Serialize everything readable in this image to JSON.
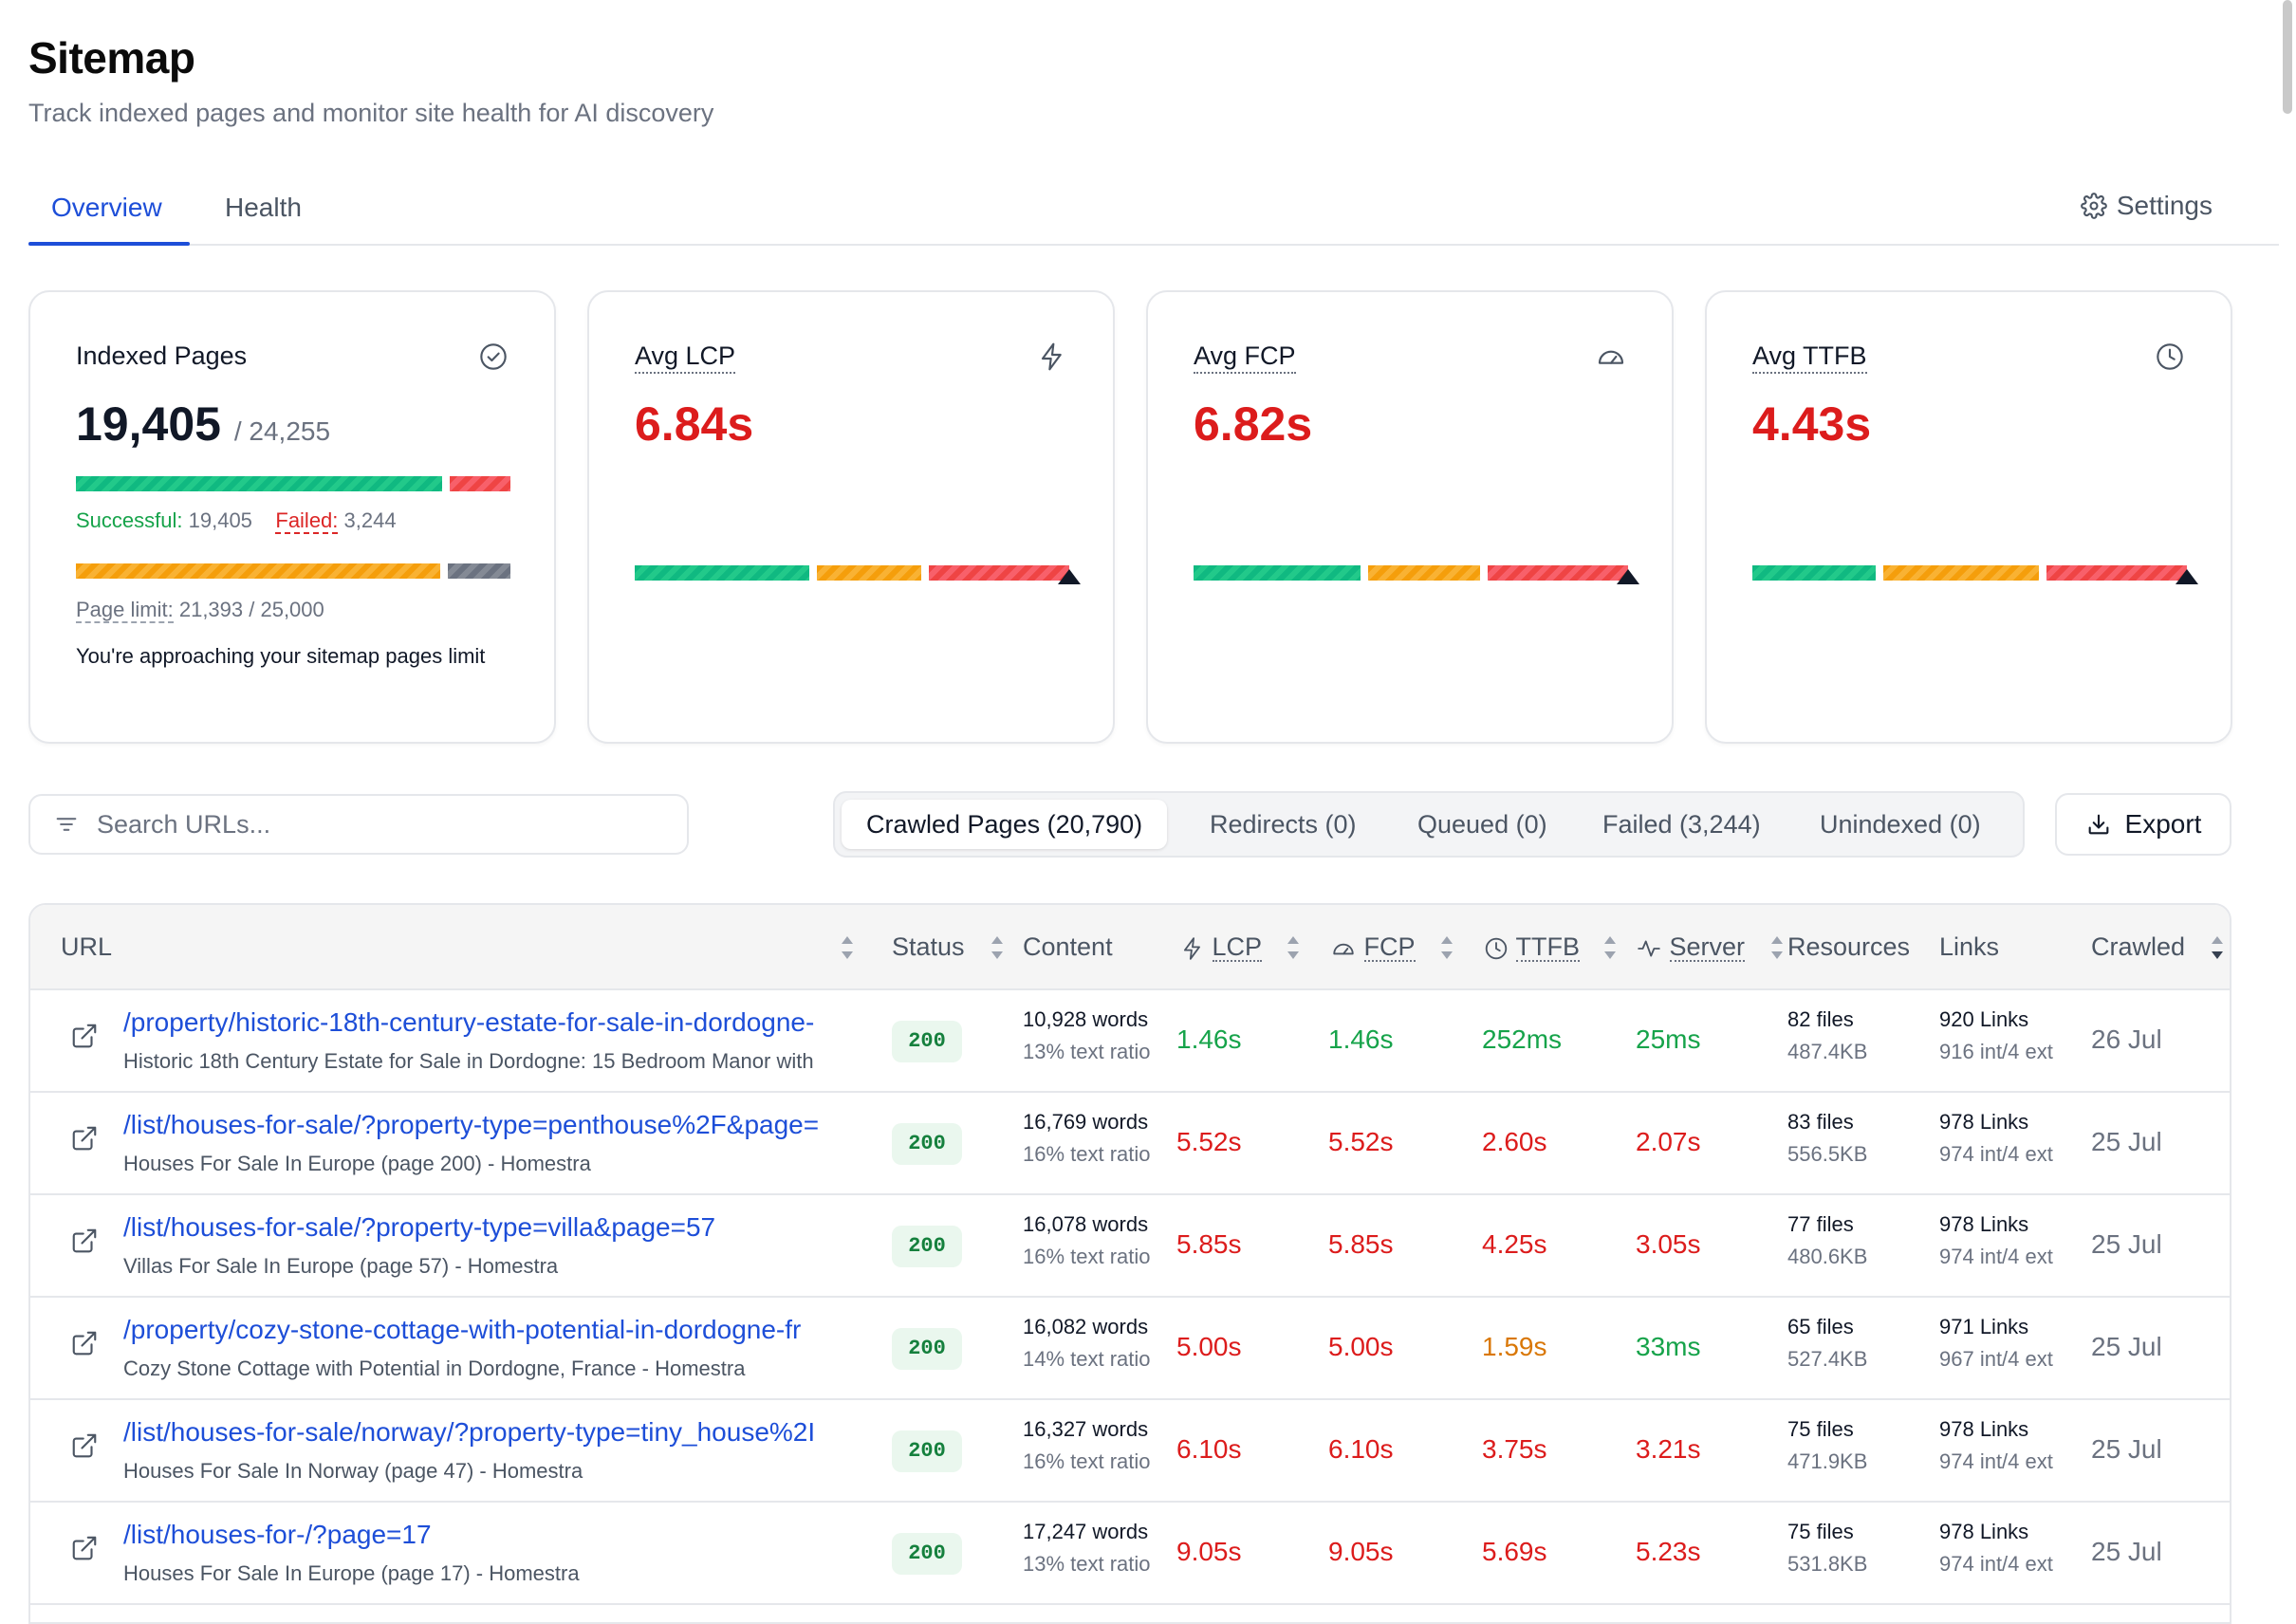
{
  "page": {
    "title": "Sitemap",
    "subtitle": "Track indexed pages and monitor site health for AI discovery"
  },
  "tabs": [
    {
      "label": "Overview",
      "active": true
    },
    {
      "label": "Health",
      "active": false
    }
  ],
  "settings_label": "Settings",
  "cards": {
    "indexed": {
      "title": "Indexed Pages",
      "icon": "check-circle-icon",
      "value": "19,405",
      "total": "/ 24,255",
      "successful_label": "Successful:",
      "successful_value": "19,405",
      "failed_label": "Failed:",
      "failed_value": "3,244",
      "successful_fraction": 0.857,
      "page_limit_label": "Page limit:",
      "page_limit_value": "21,393 / 25,000",
      "page_limit_fraction": 0.856,
      "warning": "You're approaching your sitemap pages limit"
    },
    "lcp": {
      "title": "Avg LCP",
      "icon": "lightning-icon",
      "value": "6.84s"
    },
    "fcp": {
      "title": "Avg FCP",
      "icon": "speedometer-icon",
      "value": "6.82s"
    },
    "ttfb": {
      "title": "Avg TTFB",
      "icon": "clock-icon",
      "value": "4.43s"
    }
  },
  "colors": {
    "good": "#16a34a",
    "needs_improvement": "#d97706",
    "poor": "#dc1c1c",
    "accent": "#1d4ed8"
  },
  "search": {
    "placeholder": "Search URLs..."
  },
  "filters": [
    {
      "label": "Crawled Pages (20,790)",
      "active": true
    },
    {
      "label": "Redirects (0)",
      "active": false
    },
    {
      "label": "Queued (0)",
      "active": false
    },
    {
      "label": "Failed (3,244)",
      "active": false
    },
    {
      "label": "Unindexed (0)",
      "active": false
    }
  ],
  "export_label": "Export",
  "table": {
    "headers": {
      "url": "URL",
      "status": "Status",
      "content": "Content",
      "lcp": "LCP",
      "fcp": "FCP",
      "ttfb": "TTFB",
      "server": "Server",
      "resources": "Resources",
      "links": "Links",
      "crawled": "Crawled"
    },
    "rows": [
      {
        "url": "/property/historic-18th-century-estate-for-sale-in-dordogne-",
        "title": "Historic 18th Century Estate for Sale in Dordogne: 15 Bedroom Manor with",
        "status": "200",
        "words": "10,928 words",
        "ratio": "13% text ratio",
        "lcp": "1.46s",
        "fcp": "1.46s",
        "ttfb": "252ms",
        "server": "25ms",
        "lcp_rating": "good",
        "fcp_rating": "good",
        "ttfb_rating": "good",
        "server_rating": "good",
        "files": "82 files",
        "size": "487.4KB",
        "links": "920 Links",
        "links_detail": "916 int/4 ext",
        "crawled": "26 Jul"
      },
      {
        "url": "/list/houses-for-sale/?property-type=penthouse%2F&page=",
        "title": "Houses For Sale In Europe (page 200) - Homestra",
        "status": "200",
        "words": "16,769 words",
        "ratio": "16% text ratio",
        "lcp": "5.52s",
        "fcp": "5.52s",
        "ttfb": "2.60s",
        "server": "2.07s",
        "lcp_rating": "poor",
        "fcp_rating": "poor",
        "ttfb_rating": "poor",
        "server_rating": "poor",
        "files": "83 files",
        "size": "556.5KB",
        "links": "978 Links",
        "links_detail": "974 int/4 ext",
        "crawled": "25 Jul"
      },
      {
        "url": "/list/houses-for-sale/?property-type=villa&page=57",
        "title": "Villas For Sale In Europe (page 57) - Homestra",
        "status": "200",
        "words": "16,078 words",
        "ratio": "16% text ratio",
        "lcp": "5.85s",
        "fcp": "5.85s",
        "ttfb": "4.25s",
        "server": "3.05s",
        "lcp_rating": "poor",
        "fcp_rating": "poor",
        "ttfb_rating": "poor",
        "server_rating": "poor",
        "files": "77 files",
        "size": "480.6KB",
        "links": "978 Links",
        "links_detail": "974 int/4 ext",
        "crawled": "25 Jul"
      },
      {
        "url": "/property/cozy-stone-cottage-with-potential-in-dordogne-fr",
        "title": "Cozy Stone Cottage with Potential in Dordogne, France - Homestra",
        "status": "200",
        "words": "16,082 words",
        "ratio": "14% text ratio",
        "lcp": "5.00s",
        "fcp": "5.00s",
        "ttfb": "1.59s",
        "server": "33ms",
        "lcp_rating": "poor",
        "fcp_rating": "poor",
        "ttfb_rating": "ni",
        "server_rating": "good",
        "files": "65 files",
        "size": "527.4KB",
        "links": "971 Links",
        "links_detail": "967 int/4 ext",
        "crawled": "25 Jul"
      },
      {
        "url": "/list/houses-for-sale/norway/?property-type=tiny_house%2I",
        "title": "Houses For Sale In Norway (page 47) - Homestra",
        "status": "200",
        "words": "16,327 words",
        "ratio": "16% text ratio",
        "lcp": "6.10s",
        "fcp": "6.10s",
        "ttfb": "3.75s",
        "server": "3.21s",
        "lcp_rating": "poor",
        "fcp_rating": "poor",
        "ttfb_rating": "poor",
        "server_rating": "poor",
        "files": "75 files",
        "size": "471.9KB",
        "links": "978 Links",
        "links_detail": "974 int/4 ext",
        "crawled": "25 Jul"
      },
      {
        "url": "/list/houses-for-/?page=17",
        "title": "Houses For Sale In Europe (page 17) - Homestra",
        "status": "200",
        "words": "17,247 words",
        "ratio": "13% text ratio",
        "lcp": "9.05s",
        "fcp": "9.05s",
        "ttfb": "5.69s",
        "server": "5.23s",
        "lcp_rating": "poor",
        "fcp_rating": "poor",
        "ttfb_rating": "poor",
        "server_rating": "poor",
        "files": "75 files",
        "size": "531.8KB",
        "links": "978 Links",
        "links_detail": "974 int/4 ext",
        "crawled": "25 Jul"
      }
    ]
  }
}
